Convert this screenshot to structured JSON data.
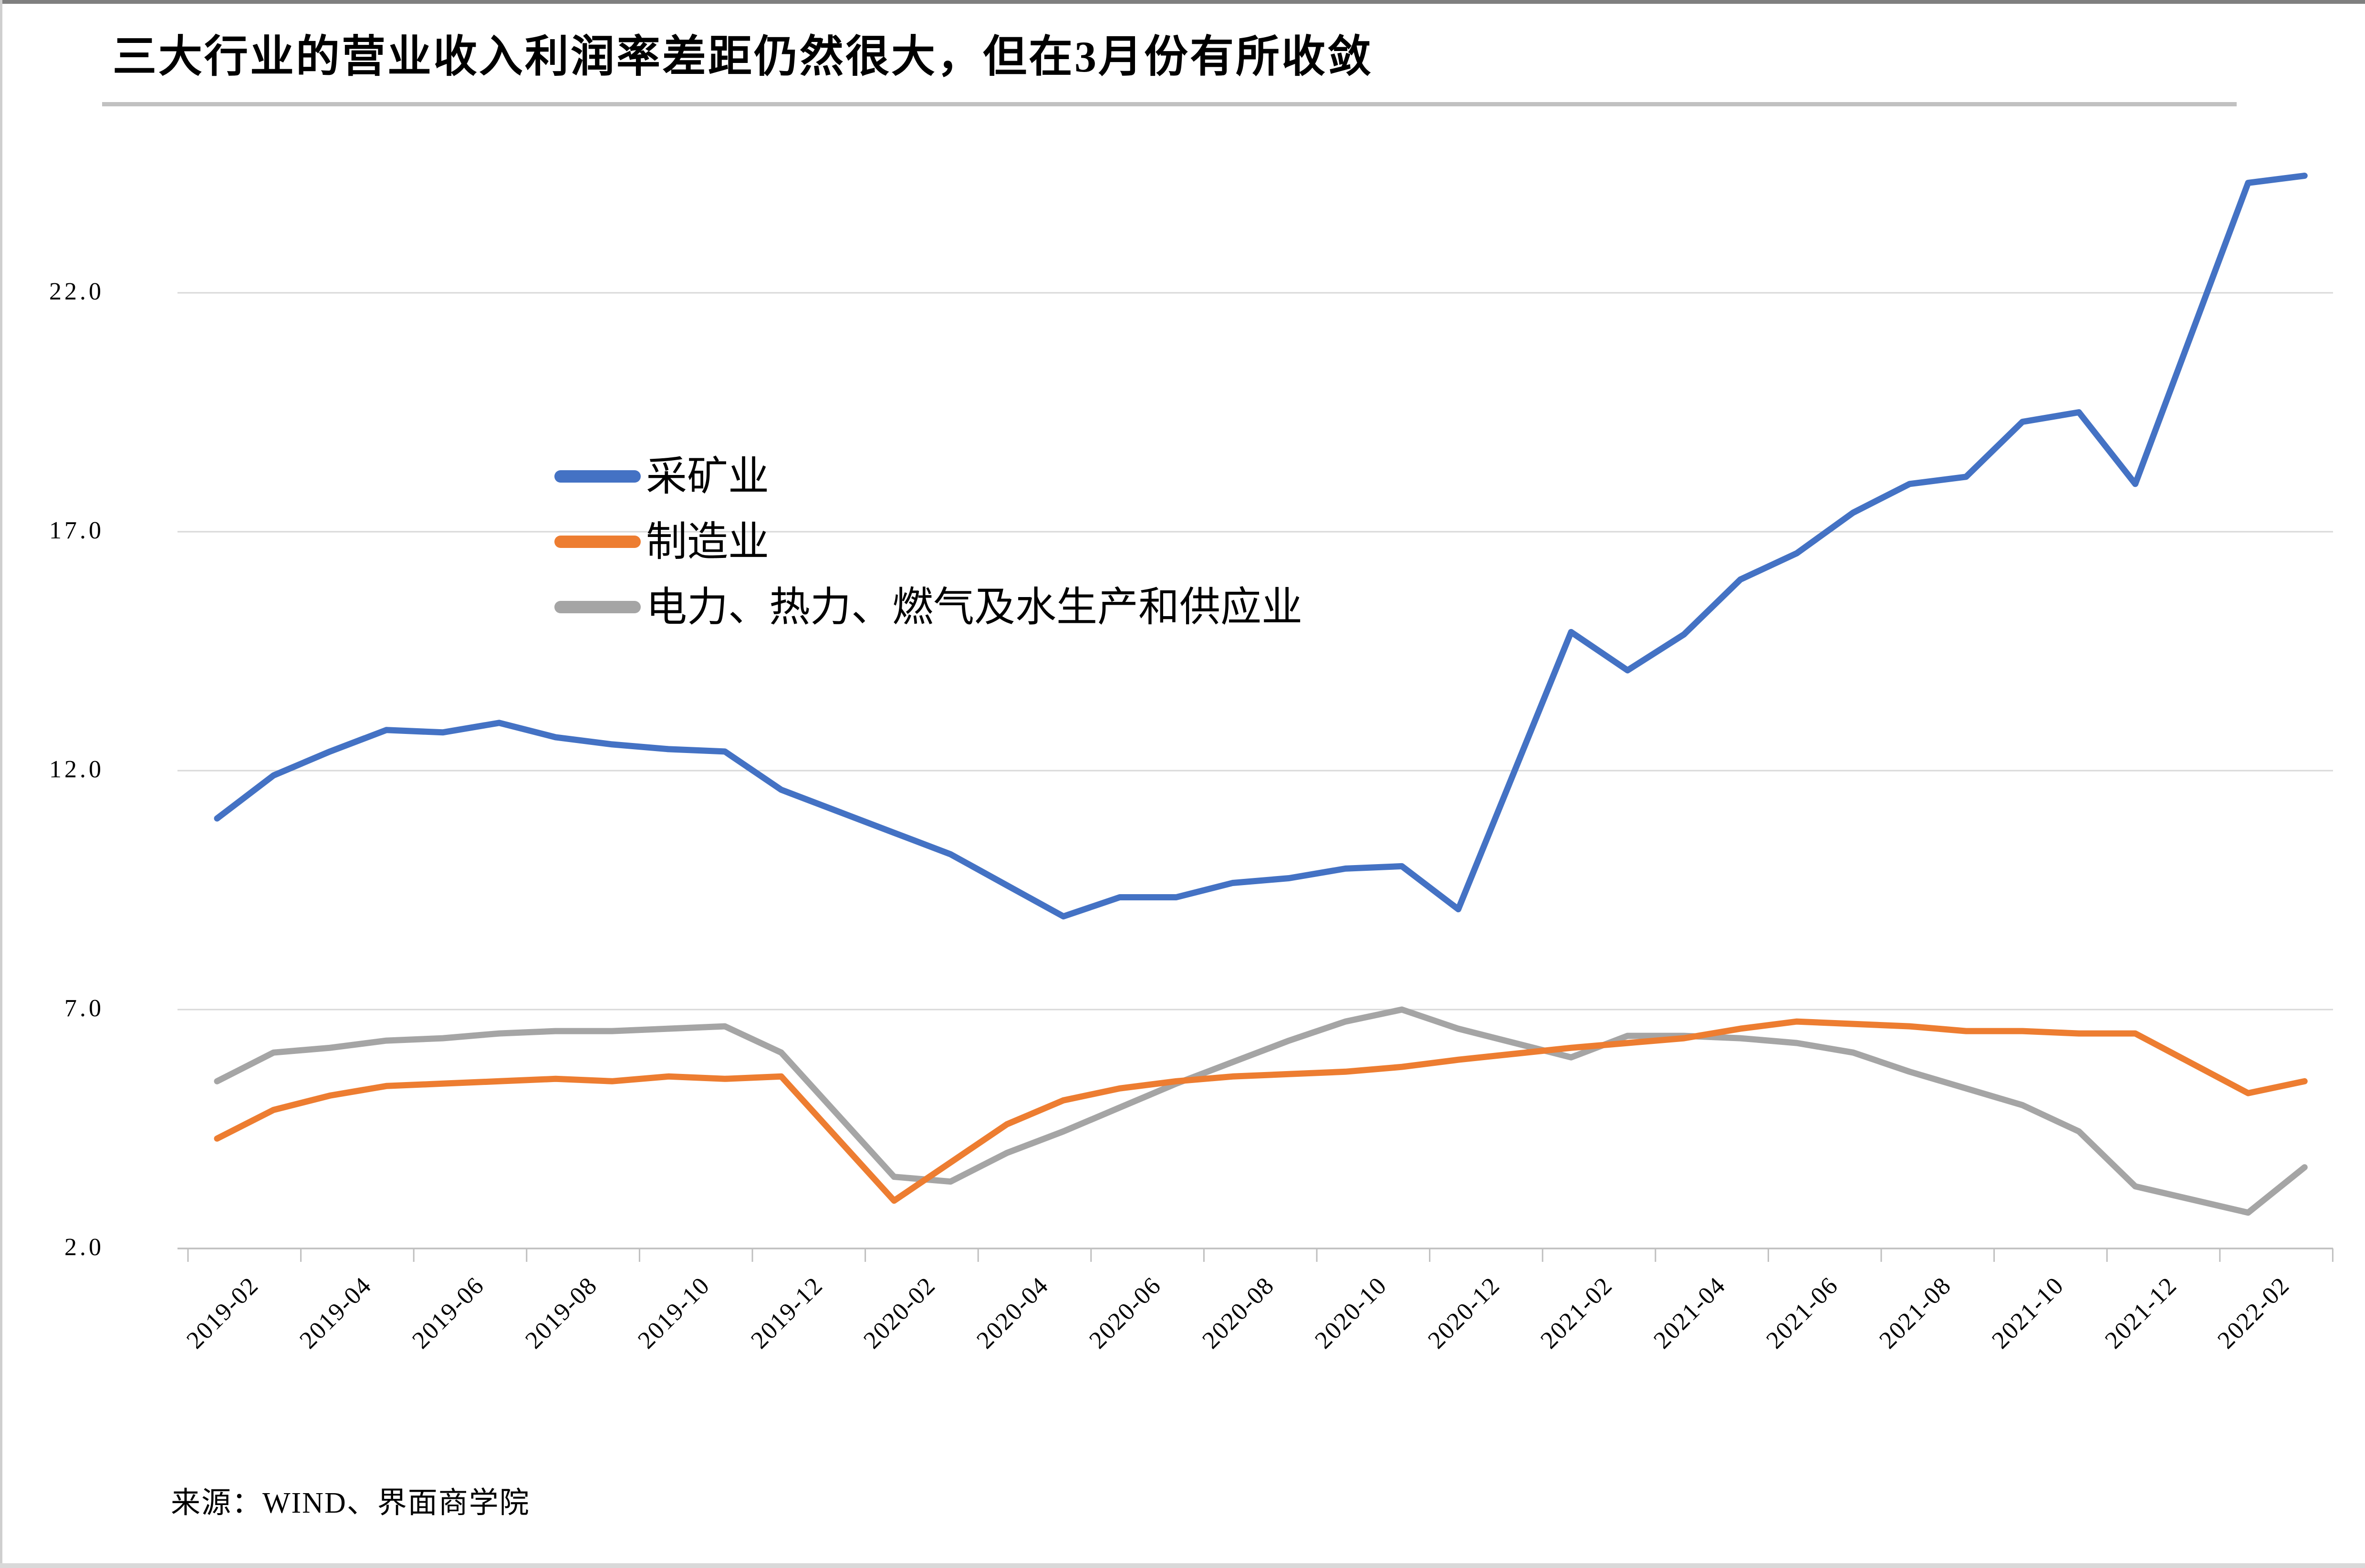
{
  "title": "三大行业的营业收入利润率差距仍然很大，但在3月份有所收敛",
  "source": "来源：WIND、界面商学院",
  "colors": {
    "mining": "#4472C4",
    "manufacturing": "#ED7D31",
    "utilities": "#A5A5A5",
    "gridline": "#D9D9D9",
    "axis": "#BFBFBF",
    "divider": "#C8C8C8",
    "text": "#000000"
  },
  "chart_data": {
    "type": "line",
    "title": "三大行业的营业收入利润率差距仍然很大，但在3月份有所收敛",
    "xlabel": "",
    "ylabel": "",
    "ylim": [
      2.0,
      25.0
    ],
    "yticks": [
      22.0,
      17.0,
      12.0,
      7.0,
      2.0
    ],
    "grid": "horizontal",
    "legend_position": "inside-left",
    "categories": [
      "2019-02",
      "2019-03",
      "2019-04",
      "2019-05",
      "2019-06",
      "2019-07",
      "2019-08",
      "2019-09",
      "2019-10",
      "2019-11",
      "2019-12",
      "2020-02",
      "2020-03",
      "2020-04",
      "2020-05",
      "2020-06",
      "2020-07",
      "2020-08",
      "2020-09",
      "2020-10",
      "2020-11",
      "2020-12",
      "2021-02",
      "2021-03",
      "2021-04",
      "2021-05",
      "2021-06",
      "2021-07",
      "2021-08",
      "2021-09",
      "2021-10",
      "2021-11",
      "2021-12",
      "2022-02",
      "2022-03"
    ],
    "x_tick_labels": [
      "2019-02",
      "2019-04",
      "2019-06",
      "2019-08",
      "2019-10",
      "2019-12",
      "2020-02",
      "2020-04",
      "2020-06",
      "2020-08",
      "2020-10",
      "2020-12",
      "2021-02",
      "2021-04",
      "2021-06",
      "2021-08",
      "2021-10",
      "2021-12",
      "2022-02"
    ],
    "series": [
      {
        "name": "采矿业",
        "color": "#4472C4",
        "values": [
          11.0,
          11.9,
          12.4,
          12.85,
          12.8,
          13.0,
          12.7,
          12.55,
          12.45,
          12.4,
          11.6,
          10.7,
          10.25,
          9.6,
          8.95,
          9.35,
          9.35,
          9.65,
          9.75,
          9.95,
          10.0,
          9.1,
          14.9,
          14.1,
          14.85,
          16.0,
          16.55,
          17.4,
          18.0,
          18.15,
          19.3,
          19.5,
          18.0,
          24.3,
          24.45
        ]
      },
      {
        "name": "制造业",
        "color": "#ED7D31",
        "values": [
          4.3,
          4.9,
          5.2,
          5.4,
          5.45,
          5.5,
          5.55,
          5.5,
          5.6,
          5.55,
          5.6,
          3.0,
          3.8,
          4.6,
          5.1,
          5.35,
          5.5,
          5.6,
          5.65,
          5.7,
          5.8,
          5.95,
          6.2,
          6.3,
          6.4,
          6.6,
          6.75,
          6.7,
          6.65,
          6.55,
          6.55,
          6.5,
          6.5,
          5.25,
          5.5
        ]
      },
      {
        "name": "电力、热力、燃气及水生产和供应业",
        "color": "#A5A5A5",
        "values": [
          5.5,
          6.1,
          6.2,
          6.35,
          6.4,
          6.5,
          6.55,
          6.55,
          6.6,
          6.65,
          6.1,
          3.5,
          3.4,
          4.0,
          4.45,
          4.95,
          5.45,
          5.9,
          6.35,
          6.75,
          7.0,
          6.6,
          6.0,
          6.45,
          6.45,
          6.4,
          6.3,
          6.1,
          5.7,
          5.35,
          5.0,
          4.45,
          3.3,
          2.75,
          3.7
        ]
      }
    ]
  }
}
